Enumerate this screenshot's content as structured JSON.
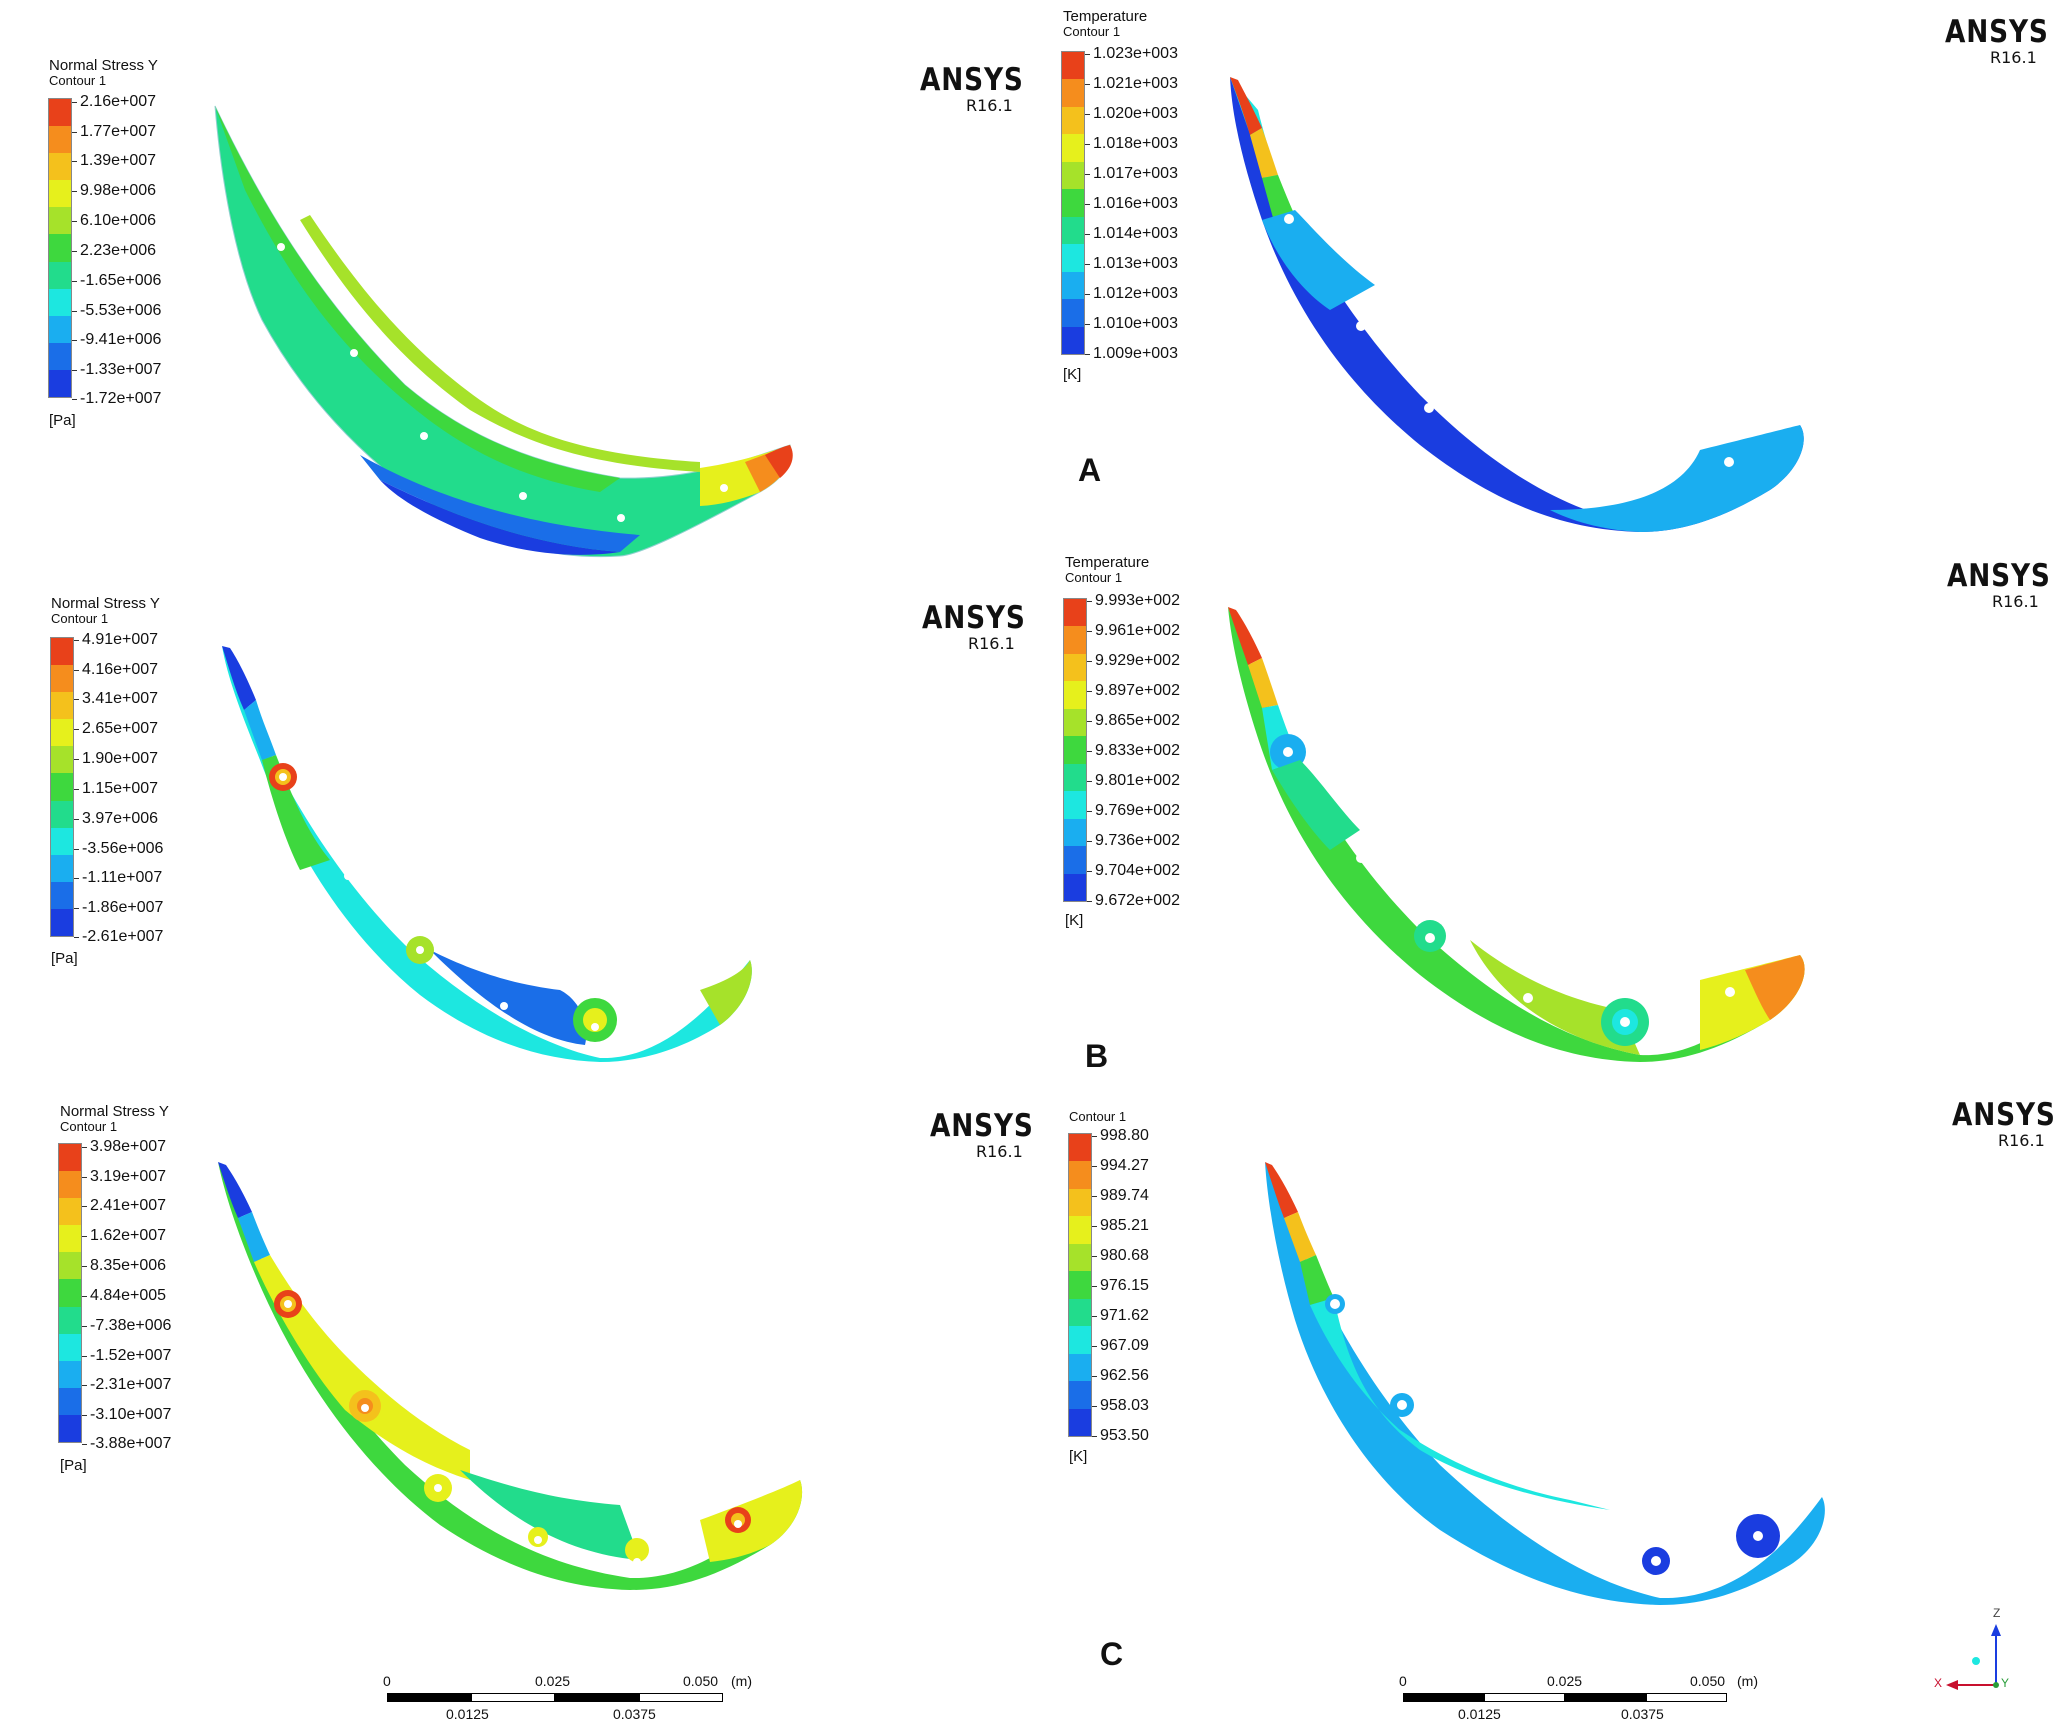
{
  "panels": {
    "a_stress": {
      "title": "Normal Stress Y",
      "subtitle": "Contour 1",
      "ticks": [
        "2.16e+007",
        "1.77e+007",
        "1.39e+007",
        "9.98e+006",
        "6.10e+006",
        "2.23e+006",
        "-1.65e+006",
        "-5.53e+006",
        "-9.41e+006",
        "-1.33e+007",
        "-1.72e+007"
      ],
      "unit": "[Pa]"
    },
    "a_temp": {
      "title": "Temperature",
      "subtitle": "Contour 1",
      "ticks": [
        "1.023e+003",
        "1.021e+003",
        "1.020e+003",
        "1.018e+003",
        "1.017e+003",
        "1.016e+003",
        "1.014e+003",
        "1.013e+003",
        "1.012e+003",
        "1.010e+003",
        "1.009e+003"
      ],
      "unit": "[K]"
    },
    "b_stress": {
      "title": "Normal Stress Y",
      "subtitle": "Contour 1",
      "ticks": [
        "4.91e+007",
        "4.16e+007",
        "3.41e+007",
        "2.65e+007",
        "1.90e+007",
        "1.15e+007",
        "3.97e+006",
        "-3.56e+006",
        "-1.11e+007",
        "-1.86e+007",
        "-2.61e+007"
      ],
      "unit": "[Pa]"
    },
    "b_temp": {
      "title": "Temperature",
      "subtitle": "Contour 1",
      "ticks": [
        "9.993e+002",
        "9.961e+002",
        "9.929e+002",
        "9.897e+002",
        "9.865e+002",
        "9.833e+002",
        "9.801e+002",
        "9.769e+002",
        "9.736e+002",
        "9.704e+002",
        "9.672e+002"
      ],
      "unit": "[K]"
    },
    "c_stress": {
      "title": "Normal Stress Y",
      "subtitle": "Contour 1",
      "ticks": [
        "3.98e+007",
        "3.19e+007",
        "2.41e+007",
        "1.62e+007",
        "8.35e+006",
        "4.84e+005",
        "-7.38e+006",
        "-1.52e+007",
        "-2.31e+007",
        "-3.10e+007",
        "-3.88e+007"
      ],
      "unit": "[Pa]"
    },
    "c_temp": {
      "title": "",
      "subtitle": "Contour 1",
      "ticks": [
        "998.80",
        "994.27",
        "989.74",
        "985.21",
        "980.68",
        "976.15",
        "971.62",
        "967.09",
        "962.56",
        "958.03",
        "953.50"
      ],
      "unit": "[K]"
    }
  },
  "brand": {
    "name": "ANSYS",
    "release": "R16.1"
  },
  "row_labels": {
    "a": "A",
    "b": "B",
    "c": "C"
  },
  "scale_bar": {
    "top": [
      "0",
      "0.025",
      "0.050",
      "(m)"
    ],
    "bottom": [
      "0.0125",
      "0.0375"
    ]
  },
  "triad": {
    "z": "Z",
    "x": "X",
    "y": "Y"
  },
  "colormap": [
    "#e8411a",
    "#f58d1d",
    "#f4c11c",
    "#e6f01c",
    "#a6e22a",
    "#3ed83e",
    "#22dc8c",
    "#1de7e0",
    "#1aaef0",
    "#1a6ee8",
    "#1a3de0"
  ]
}
